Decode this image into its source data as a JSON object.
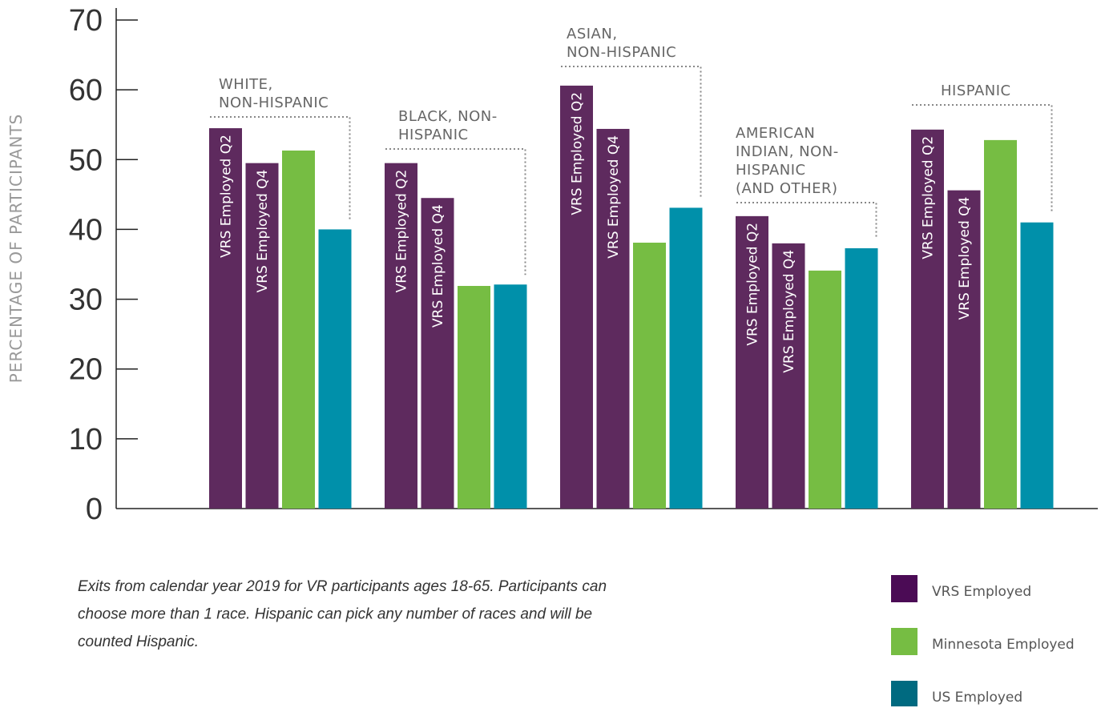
{
  "chart_data": {
    "type": "bar",
    "y_label": "PERCENTAGE OF PARTICIPANTS",
    "categories": [
      [
        "WHITE,",
        "NON-HISPANIC"
      ],
      [
        "BLACK, NON-",
        "HISPANIC"
      ],
      [
        "ASIAN,",
        "NON-HISPANIC"
      ],
      [
        "AMERICAN",
        "INDIAN, NON-",
        "HISPANIC",
        "(AND OTHER)"
      ],
      [
        "HISPANIC"
      ]
    ],
    "series": [
      {
        "name": "VRS Employed Q2",
        "color": "#5e2a5e",
        "values": [
          54.5,
          49.5,
          60.6,
          41.9,
          54.3
        ]
      },
      {
        "name": "VRS Employed Q4",
        "color": "#5e2a5e",
        "values": [
          49.5,
          44.5,
          54.4,
          38,
          45.6
        ]
      },
      {
        "name": "Minnesota Employed",
        "color": "#76bd43",
        "values": [
          51.3,
          31.9,
          38.1,
          34.1,
          52.8
        ]
      },
      {
        "name": "US Employed",
        "color": "#0090aa",
        "values": [
          40,
          32.1,
          43.1,
          37.3,
          41
        ]
      }
    ],
    "legend": [
      {
        "label": "VRS Employed",
        "color": "#4b0b55"
      },
      {
        "label": "Minnesota Employed",
        "color": "#76bd43"
      },
      {
        "label": "US Employed",
        "color": "#006a80"
      }
    ],
    "ylim": [
      0,
      70
    ],
    "yticks": [
      0,
      10,
      20,
      30,
      40,
      50,
      60,
      70
    ],
    "note": [
      "Exits from calendar year 2019 for VR participants ages 18-65. Participants can",
      "choose more than 1 race. Hispanic can pick any number of races and will be",
      "counted Hispanic."
    ]
  }
}
